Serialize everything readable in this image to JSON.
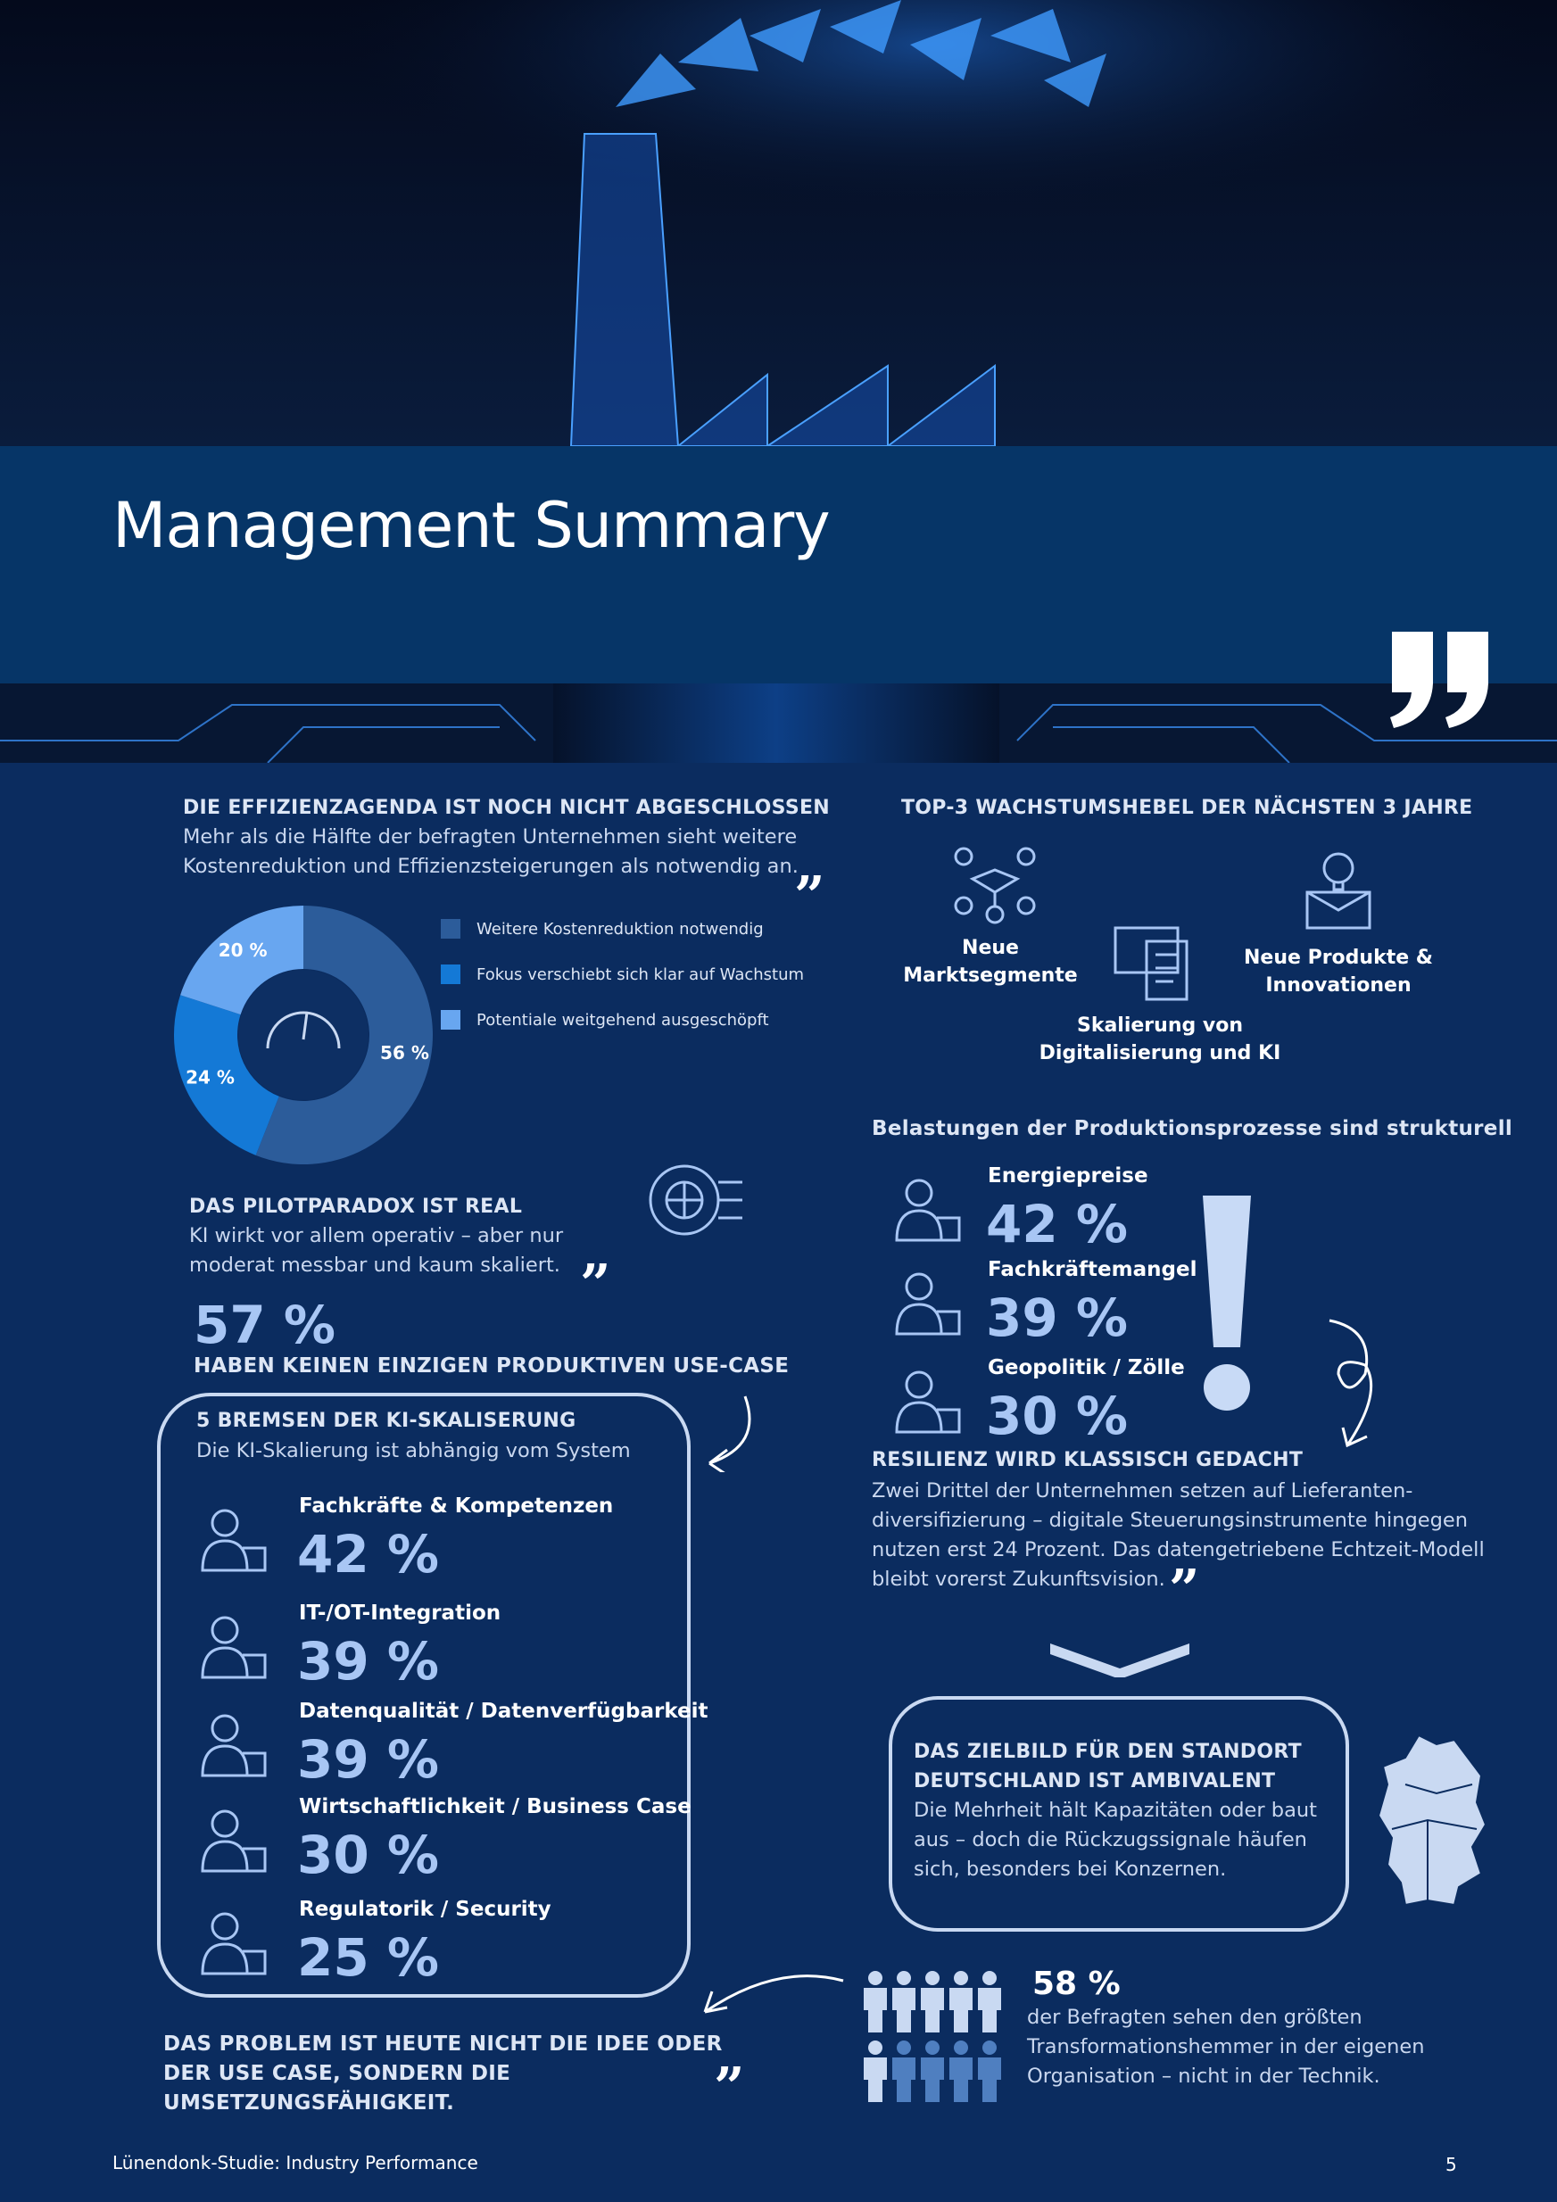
{
  "header": {
    "title": "Management Summary"
  },
  "efficiency": {
    "heading": "DIE EFFIZIENZAGENDA IST NOCH NICHT ABGESCHLOSSEN",
    "text": "Mehr als die Hälfte der befragten Unternehmen sieht weitere Kostenreduktion und Effizienzsteigerungen als notwendig an.",
    "donut": {
      "type": "pie",
      "labels": [
        "Weitere Kostenreduktion notwendig",
        "Fokus verschiebt sich klar auf Wachstum",
        "Potentiale weitgehend ausgeschöpft"
      ],
      "values": [
        56,
        24,
        20
      ],
      "value_labels": [
        "56 %",
        "24 %",
        "20 %"
      ],
      "colors": [
        "#2c5c9a",
        "#1479d6",
        "#68a6f0"
      ]
    }
  },
  "growth": {
    "heading": "TOP-3 WACHSTUMSHEBEL DER NÄCHSTEN 3 JAHRE",
    "items": [
      "Neue Marktsegmente",
      "Skalierung von Digitalisierung und KI",
      "Neue Produkte & Innovationen"
    ]
  },
  "pilot": {
    "heading": "DAS PILOTPARADOX IST REAL",
    "text": "KI wirkt vor allem operativ – aber nur moderat messbar und kaum skaliert.",
    "stat": "57 %",
    "stat_text": "HABEN KEINEN EINZIGEN PRODUKTIVEN USE-CASE"
  },
  "burdens": {
    "heading": "Belastungen der Produktionsprozesse sind strukturell",
    "items": [
      {
        "label": "Energiepreise",
        "value": "42 %"
      },
      {
        "label": "Fachkräftemangel",
        "value": "39 %"
      },
      {
        "label": "Geopolitik / Zölle",
        "value": "30 %"
      }
    ]
  },
  "brakes": {
    "heading": "5 BREMSEN DER KI-SKALISERUNG",
    "text": "Die KI-Skalierung ist abhängig vom System",
    "items": [
      {
        "label": "Fachkräfte & Kompetenzen",
        "value": "42 %"
      },
      {
        "label": "IT-/OT-Integration",
        "value": "39 %"
      },
      {
        "label": "Datenqualität / Datenverfügbarkeit",
        "value": "39 %"
      },
      {
        "label": "Wirtschaftlichkeit / Business Case",
        "value": "30 %"
      },
      {
        "label": "Regulatorik / Security",
        "value": "25 %"
      }
    ]
  },
  "resilience": {
    "heading": "RESILIENZ WIRD KLASSISCH GEDACHT",
    "text": "Zwei Drittel der Unternehmen setzen auf Lieferanten-diversifizierung – digitale Steuerungsinstrumente hingegen nutzen erst 24 Prozent. Das datengetriebene Echtzeit-Modell bleibt vorerst Zukunftsvision."
  },
  "target": {
    "heading": "DAS ZIELBILD FÜR DEN STANDORT DEUTSCHLAND IST AMBIVALENT",
    "text": "Die Mehrheit hält Kapazitäten oder baut aus – doch die Rückzugssignale häufen sich, besonders bei Konzernen."
  },
  "problem": {
    "text": "DAS PROBLEM IST HEUTE NICHT DIE IDEE ODER DER USE CASE, SONDERN DIE UMSETZUNGSFÄHIGKEIT."
  },
  "people": {
    "stat": "58 %",
    "text": "der Befragten sehen den größten Transformationshemmer in der eigenen Organisation – nicht in der Technik."
  },
  "footer": {
    "source": "Lünendonk-Studie: Industry Performance",
    "page": "5"
  }
}
